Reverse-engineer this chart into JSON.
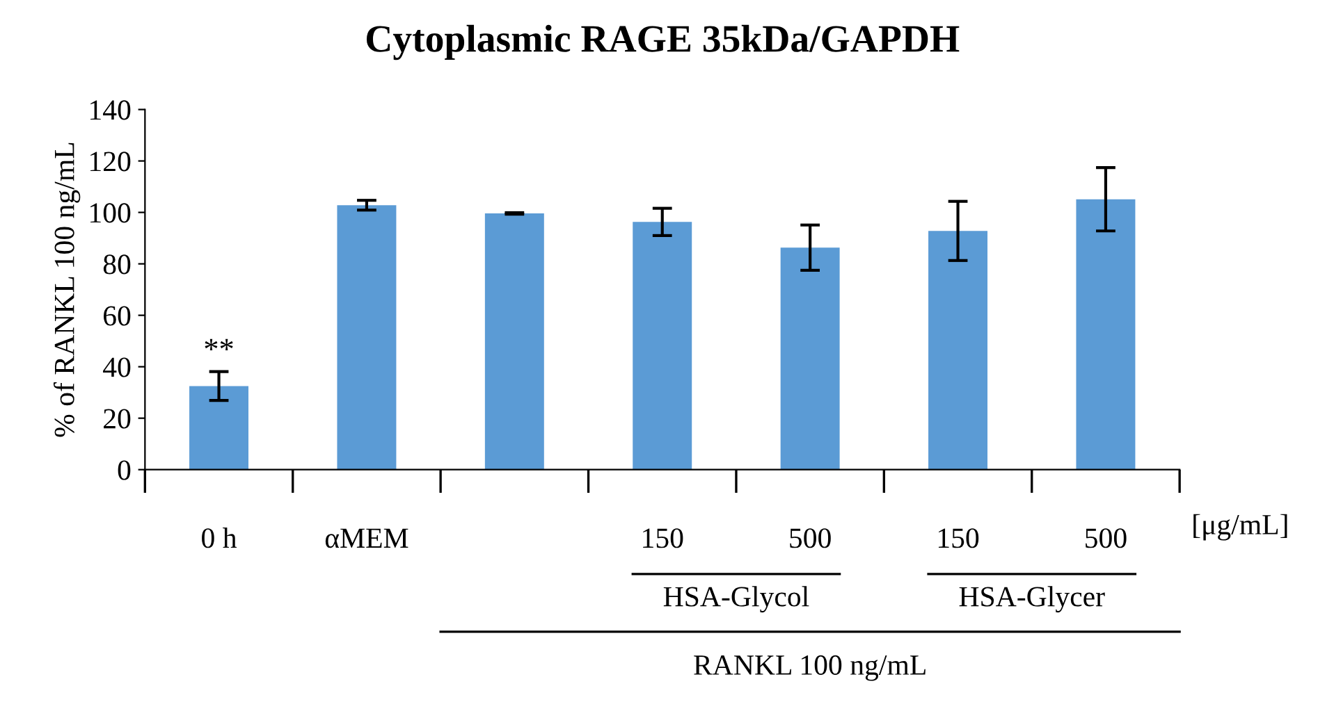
{
  "chart_data": {
    "type": "bar",
    "title": "Cytoplasmic RAGE 35kDa/GAPDH",
    "ylabel": "% of RANKL 100 ng/mL",
    "categories": [
      "0 h",
      "αMEM",
      null,
      "150",
      "500",
      "150",
      "500"
    ],
    "values": [
      32.5,
      102.8,
      99.6,
      96.3,
      86.3,
      92.8,
      105.1
    ],
    "errors": [
      5.6,
      1.9,
      0.3,
      5.3,
      8.8,
      11.5,
      12.3
    ],
    "color": "#5b9bd5",
    "ylim": [
      0,
      140
    ],
    "yticks": [
      0,
      20,
      40,
      60,
      80,
      100,
      120,
      140
    ],
    "grid": false,
    "legend": false,
    "annotations": [
      {
        "text": "**",
        "x": "0 h",
        "y": 38.1
      },
      "[μg/mL]",
      "HSA-Glycol",
      "HSA-Glycer",
      "RANKL 100 ng/mL"
    ]
  }
}
